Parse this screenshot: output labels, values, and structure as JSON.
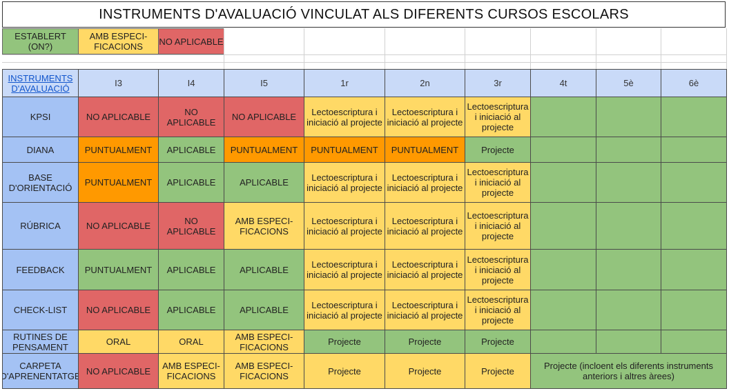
{
  "title": "INSTRUMENTS D'AVALUACIÓ VINCULAT ALS DIFERENTS CURSOS ESCOLARS",
  "legend": [
    {
      "label": "ESTABLERT (ON?)",
      "color": "#93c47d"
    },
    {
      "label": "AMB ESPECI-FICACIONS",
      "color": "#ffd966"
    },
    {
      "label": "NO APLICABLE",
      "color": "#e06666"
    }
  ],
  "table": {
    "corner": "INSTRUMENTS D'AVALUACIÓ",
    "columns": [
      "I3",
      "I4",
      "I5",
      "1r",
      "2n",
      "3r",
      "4t",
      "5è",
      "6è"
    ],
    "rows": [
      {
        "name": "KPSI",
        "cells": [
          {
            "text": "NO APLICABLE",
            "color": "red"
          },
          {
            "text": "NO APLICABLE",
            "color": "red"
          },
          {
            "text": "NO APLICABLE",
            "color": "red"
          },
          {
            "text": "Lectoescriptura i iniciació al projecte",
            "color": "yellow"
          },
          {
            "text": "Lectoescriptura i iniciació al projecte",
            "color": "yellow"
          },
          {
            "text": "Lectoescriptura i iniciació al projecte",
            "color": "yellow"
          },
          {
            "text": "",
            "color": "green"
          },
          {
            "text": "",
            "color": "green"
          },
          {
            "text": "",
            "color": "green"
          }
        ]
      },
      {
        "name": "DIANA",
        "cells": [
          {
            "text": "PUNTUALMENT",
            "color": "orange"
          },
          {
            "text": "APLICABLE",
            "color": "green"
          },
          {
            "text": "PUNTUALMENT",
            "color": "orange"
          },
          {
            "text": "PUNTUALMENT",
            "color": "orange"
          },
          {
            "text": "PUNTUALMENT",
            "color": "orange"
          },
          {
            "text": "Projecte",
            "color": "green"
          },
          {
            "text": "",
            "color": "green"
          },
          {
            "text": "",
            "color": "green"
          },
          {
            "text": "",
            "color": "green"
          }
        ]
      },
      {
        "name": "BASE D'ORIENTACIÓ",
        "cells": [
          {
            "text": "PUNTUALMENT",
            "color": "orange"
          },
          {
            "text": "APLICABLE",
            "color": "green"
          },
          {
            "text": "APLICABLE",
            "color": "green"
          },
          {
            "text": "Lectoescriptura i iniciació al projecte",
            "color": "yellow"
          },
          {
            "text": "Lectoescriptura i iniciació al projecte",
            "color": "yellow"
          },
          {
            "text": "Lectoescriptura i iniciació al projecte",
            "color": "yellow"
          },
          {
            "text": "",
            "color": "green"
          },
          {
            "text": "",
            "color": "green"
          },
          {
            "text": "",
            "color": "green"
          }
        ]
      },
      {
        "name": "RÚBRICA",
        "cells": [
          {
            "text": "NO APLICABLE",
            "color": "red"
          },
          {
            "text": "NO APLICABLE",
            "color": "red"
          },
          {
            "text": "AMB ESPECI-FICACIONS",
            "color": "yellow"
          },
          {
            "text": "Lectoescriptura i iniciació al projecte",
            "color": "yellow"
          },
          {
            "text": "Lectoescriptura i iniciació al projecte",
            "color": "yellow"
          },
          {
            "text": "Lectoescriptura i iniciació al projecte",
            "color": "yellow"
          },
          {
            "text": "",
            "color": "green"
          },
          {
            "text": "",
            "color": "green"
          },
          {
            "text": "",
            "color": "green"
          }
        ]
      },
      {
        "name": "FEEDBACK",
        "cells": [
          {
            "text": "PUNTUALMENT",
            "color": "green"
          },
          {
            "text": "APLICABLE",
            "color": "green"
          },
          {
            "text": "APLICABLE",
            "color": "green"
          },
          {
            "text": "Lectoescriptura i iniciació al projecte",
            "color": "yellow"
          },
          {
            "text": "Lectoescriptura i iniciació al projecte",
            "color": "yellow"
          },
          {
            "text": "Lectoescriptura i iniciació al projecte",
            "color": "yellow"
          },
          {
            "text": "",
            "color": "green"
          },
          {
            "text": "",
            "color": "green"
          },
          {
            "text": "",
            "color": "green"
          }
        ]
      },
      {
        "name": "CHECK-LIST",
        "cells": [
          {
            "text": "NO APLICABLE",
            "color": "red"
          },
          {
            "text": "APLICABLE",
            "color": "green"
          },
          {
            "text": "APLICABLE",
            "color": "green"
          },
          {
            "text": "Lectoescriptura i iniciació al projecte",
            "color": "yellow"
          },
          {
            "text": "Lectoescriptura i iniciació al projecte",
            "color": "yellow"
          },
          {
            "text": "Lectoescriptura i iniciació al projecte",
            "color": "yellow"
          },
          {
            "text": "",
            "color": "green"
          },
          {
            "text": "",
            "color": "green"
          },
          {
            "text": "",
            "color": "green"
          }
        ]
      },
      {
        "name": "RUTINES DE PENSAMENT",
        "cells": [
          {
            "text": "ORAL",
            "color": "yellow"
          },
          {
            "text": "ORAL",
            "color": "yellow"
          },
          {
            "text": "AMB ESPECI-FICACIONS",
            "color": "yellow"
          },
          {
            "text": "Projecte",
            "color": "green"
          },
          {
            "text": "Projecte",
            "color": "green"
          },
          {
            "text": "Projecte",
            "color": "green"
          },
          {
            "text": "",
            "color": "green"
          },
          {
            "text": "",
            "color": "green"
          },
          {
            "text": "",
            "color": "green"
          }
        ]
      },
      {
        "name": "CARPETA D'APRENENTATGE",
        "cells": [
          {
            "text": "NO APLICABLE",
            "color": "red"
          },
          {
            "text": "AMB ESPECI-FICACIONS",
            "color": "yellow"
          },
          {
            "text": "AMB ESPECI-FICACIONS",
            "color": "yellow"
          },
          {
            "text": "Projecte",
            "color": "yellow"
          },
          {
            "text": "Projecte",
            "color": "yellow"
          },
          {
            "text": "Projecte",
            "color": "yellow"
          },
          {
            "text": "Projecte (incloent els diferents instruments anteriors i altres àrees)",
            "color": "green",
            "span": 3
          }
        ]
      }
    ]
  }
}
